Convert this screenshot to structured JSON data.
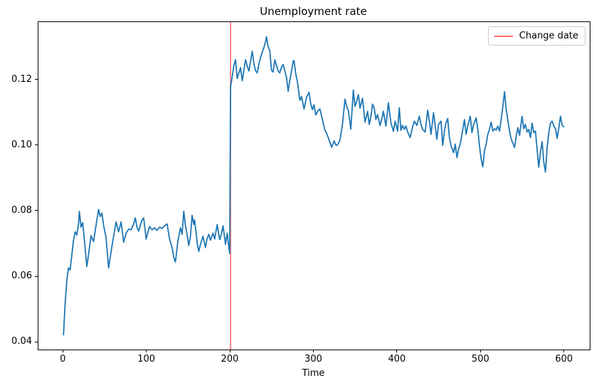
{
  "chart_data": {
    "type": "line",
    "title": "Unemployment rate",
    "xlabel": "Time",
    "ylabel": "",
    "xlim": [
      -30,
      630
    ],
    "ylim": [
      0.0379,
      0.1377
    ],
    "x_ticks": [
      0,
      100,
      200,
      300,
      400,
      500,
      600
    ],
    "y_ticks": [
      0.04,
      0.06,
      0.08,
      0.1,
      0.12
    ],
    "grid": false,
    "legend_position": "upper right",
    "colors": {
      "series": "#1f77b4",
      "vline": "#f96a6a",
      "spine": "#000000",
      "legend_border": "#cccccc"
    },
    "vline": {
      "x": 200,
      "color": "#f96a6a",
      "label": "Change date"
    },
    "series": [
      {
        "name": "unemployment-rate",
        "color": "#1f77b4",
        "points": [
          [
            0,
            0.0424
          ],
          [
            2,
            0.052
          ],
          [
            4,
            0.059
          ],
          [
            6,
            0.0628
          ],
          [
            8,
            0.0622
          ],
          [
            10,
            0.0668
          ],
          [
            12,
            0.0712
          ],
          [
            14,
            0.0738
          ],
          [
            16,
            0.0728
          ],
          [
            18,
            0.0762
          ],
          [
            19,
            0.08
          ],
          [
            21,
            0.0752
          ],
          [
            23,
            0.0766
          ],
          [
            25,
            0.0714
          ],
          [
            28,
            0.0632
          ],
          [
            30,
            0.0668
          ],
          [
            33,
            0.0726
          ],
          [
            36,
            0.0708
          ],
          [
            39,
            0.0758
          ],
          [
            42,
            0.0806
          ],
          [
            44,
            0.0784
          ],
          [
            46,
            0.0795
          ],
          [
            48,
            0.0758
          ],
          [
            51,
            0.072
          ],
          [
            54,
            0.0628
          ],
          [
            57,
            0.0678
          ],
          [
            60,
            0.0724
          ],
          [
            63,
            0.0768
          ],
          [
            66,
            0.0738
          ],
          [
            69,
            0.0768
          ],
          [
            72,
            0.0706
          ],
          [
            75,
            0.0734
          ],
          [
            78,
            0.0746
          ],
          [
            81,
            0.0744
          ],
          [
            84,
            0.0762
          ],
          [
            86,
            0.078
          ],
          [
            88,
            0.0752
          ],
          [
            90,
            0.074
          ],
          [
            92,
            0.0758
          ],
          [
            94,
            0.0774
          ],
          [
            96,
            0.078
          ],
          [
            99,
            0.0716
          ],
          [
            101,
            0.0736
          ],
          [
            103,
            0.0754
          ],
          [
            106,
            0.0744
          ],
          [
            109,
            0.075
          ],
          [
            112,
            0.0742
          ],
          [
            115,
            0.0752
          ],
          [
            118,
            0.0748
          ],
          [
            121,
            0.0756
          ],
          [
            124,
            0.0762
          ],
          [
            127,
            0.0716
          ],
          [
            130,
            0.069
          ],
          [
            132,
            0.066
          ],
          [
            134,
            0.0646
          ],
          [
            137,
            0.071
          ],
          [
            140,
            0.075
          ],
          [
            142,
            0.073
          ],
          [
            144,
            0.08
          ],
          [
            146,
            0.0756
          ],
          [
            148,
            0.073
          ],
          [
            150,
            0.0696
          ],
          [
            152,
            0.0724
          ],
          [
            154,
            0.0788
          ],
          [
            156,
            0.076
          ],
          [
            157,
            0.0774
          ],
          [
            159,
            0.073
          ],
          [
            160,
            0.0704
          ],
          [
            162,
            0.0678
          ],
          [
            164,
            0.07
          ],
          [
            167,
            0.0724
          ],
          [
            170,
            0.069
          ],
          [
            172,
            0.0718
          ],
          [
            174,
            0.073
          ],
          [
            176,
            0.0712
          ],
          [
            179,
            0.0734
          ],
          [
            181,
            0.0716
          ],
          [
            184,
            0.076
          ],
          [
            187,
            0.0714
          ],
          [
            189,
            0.073
          ],
          [
            191,
            0.0756
          ],
          [
            194,
            0.07
          ],
          [
            196,
            0.0734
          ],
          [
            198,
            0.069
          ],
          [
            199,
            0.0672
          ],
          [
            200,
            0.118
          ],
          [
            202,
            0.121
          ],
          [
            204,
            0.1245
          ],
          [
            206,
            0.1262
          ],
          [
            208,
            0.1205
          ],
          [
            210,
            0.1222
          ],
          [
            212,
            0.1238
          ],
          [
            214,
            0.1198
          ],
          [
            216,
            0.123
          ],
          [
            218,
            0.1262
          ],
          [
            220,
            0.1242
          ],
          [
            222,
            0.1228
          ],
          [
            224,
            0.1258
          ],
          [
            226,
            0.1288
          ],
          [
            228,
            0.125
          ],
          [
            230,
            0.1228
          ],
          [
            232,
            0.1222
          ],
          [
            234,
            0.125
          ],
          [
            236,
            0.127
          ],
          [
            238,
            0.1285
          ],
          [
            240,
            0.13
          ],
          [
            242,
            0.1318
          ],
          [
            243,
            0.1332
          ],
          [
            245,
            0.1302
          ],
          [
            247,
            0.129
          ],
          [
            249,
            0.123
          ],
          [
            251,
            0.1225
          ],
          [
            253,
            0.1262
          ],
          [
            255,
            0.1245
          ],
          [
            257,
            0.1228
          ],
          [
            259,
            0.1222
          ],
          [
            261,
            0.124
          ],
          [
            263,
            0.1248
          ],
          [
            265,
            0.1228
          ],
          [
            267,
            0.1208
          ],
          [
            269,
            0.1166
          ],
          [
            271,
            0.12
          ],
          [
            273,
            0.1228
          ],
          [
            275,
            0.1258
          ],
          [
            276,
            0.126
          ],
          [
            278,
            0.122
          ],
          [
            280,
            0.1196
          ],
          [
            283,
            0.1138
          ],
          [
            285,
            0.115
          ],
          [
            288,
            0.1112
          ],
          [
            291,
            0.1148
          ],
          [
            294,
            0.1163
          ],
          [
            296,
            0.1128
          ],
          [
            298,
            0.111
          ],
          [
            300,
            0.1125
          ],
          [
            302,
            0.1094
          ],
          [
            305,
            0.1108
          ],
          [
            307,
            0.1112
          ],
          [
            310,
            0.108
          ],
          [
            313,
            0.1047
          ],
          [
            315,
            0.1038
          ],
          [
            317,
            0.1025
          ],
          [
            319,
            0.101
          ],
          [
            321,
            0.0996
          ],
          [
            323,
            0.1008
          ],
          [
            324,
            0.1015
          ],
          [
            326,
            0.1002
          ],
          [
            327,
            0.1001
          ],
          [
            329,
            0.1006
          ],
          [
            331,
            0.1018
          ],
          [
            334,
            0.1065
          ],
          [
            337,
            0.1142
          ],
          [
            339,
            0.112
          ],
          [
            341,
            0.1108
          ],
          [
            344,
            0.1051
          ],
          [
            347,
            0.117
          ],
          [
            349,
            0.112
          ],
          [
            351,
            0.1135
          ],
          [
            353,
            0.1156
          ],
          [
            355,
            0.1115
          ],
          [
            358,
            0.1145
          ],
          [
            361,
            0.1072
          ],
          [
            364,
            0.1105
          ],
          [
            366,
            0.1065
          ],
          [
            368,
            0.1088
          ],
          [
            370,
            0.1127
          ],
          [
            372,
            0.1115
          ],
          [
            374,
            0.108
          ],
          [
            376,
            0.1095
          ],
          [
            379,
            0.1062
          ],
          [
            381,
            0.108
          ],
          [
            383,
            0.1105
          ],
          [
            386,
            0.106
          ],
          [
            389,
            0.1131
          ],
          [
            392,
            0.107
          ],
          [
            395,
            0.1044
          ],
          [
            397,
            0.1075
          ],
          [
            400,
            0.1045
          ],
          [
            402,
            0.1116
          ],
          [
            404,
            0.1047
          ],
          [
            406,
            0.1062
          ],
          [
            408,
            0.105
          ],
          [
            410,
            0.106
          ],
          [
            412,
            0.1042
          ],
          [
            415,
            0.1025
          ],
          [
            418,
            0.1058
          ],
          [
            420,
            0.1075
          ],
          [
            423,
            0.1062
          ],
          [
            426,
            0.109
          ],
          [
            428,
            0.1065
          ],
          [
            430,
            0.105
          ],
          [
            433,
            0.1042
          ],
          [
            436,
            0.1109
          ],
          [
            438,
            0.1075
          ],
          [
            440,
            0.1035
          ],
          [
            443,
            0.1101
          ],
          [
            445,
            0.106
          ],
          [
            447,
            0.102
          ],
          [
            449,
            0.1065
          ],
          [
            452,
            0.1075
          ],
          [
            454,
            0.1001
          ],
          [
            456,
            0.1045
          ],
          [
            458,
            0.107
          ],
          [
            460,
            0.1083
          ],
          [
            462,
            0.1025
          ],
          [
            464,
            0.1
          ],
          [
            467,
            0.0979
          ],
          [
            469,
            0.1005
          ],
          [
            471,
            0.0964
          ],
          [
            473,
            0.099
          ],
          [
            475,
            0.1005
          ],
          [
            478,
            0.105
          ],
          [
            480,
            0.108
          ],
          [
            482,
            0.1035
          ],
          [
            484,
            0.106
          ],
          [
            487,
            0.109
          ],
          [
            489,
            0.104
          ],
          [
            491,
            0.1065
          ],
          [
            494,
            0.1085
          ],
          [
            496,
            0.105
          ],
          [
            498,
            0.1
          ],
          [
            500,
            0.096
          ],
          [
            502,
            0.0936
          ],
          [
            504,
            0.0985
          ],
          [
            506,
            0.1005
          ],
          [
            508,
            0.1035
          ],
          [
            510,
            0.105
          ],
          [
            512,
            0.1072
          ],
          [
            514,
            0.1045
          ],
          [
            516,
            0.1052
          ],
          [
            518,
            0.1048
          ],
          [
            520,
            0.106
          ],
          [
            522,
            0.1045
          ],
          [
            524,
            0.108
          ],
          [
            526,
            0.112
          ],
          [
            528,
            0.1165
          ],
          [
            530,
            0.111
          ],
          [
            532,
            0.1077
          ],
          [
            534,
            0.1045
          ],
          [
            536,
            0.102
          ],
          [
            538,
            0.1008
          ],
          [
            540,
            0.0995
          ],
          [
            542,
            0.103
          ],
          [
            544,
            0.1055
          ],
          [
            546,
            0.1032
          ],
          [
            549,
            0.109
          ],
          [
            551,
            0.1052
          ],
          [
            553,
            0.1065
          ],
          [
            555,
            0.1042
          ],
          [
            557,
            0.105
          ],
          [
            559,
            0.1025
          ],
          [
            561,
            0.1069
          ],
          [
            563,
            0.104
          ],
          [
            565,
            0.1045
          ],
          [
            567,
            0.099
          ],
          [
            569,
            0.0935
          ],
          [
            571,
            0.0982
          ],
          [
            573,
            0.1012
          ],
          [
            575,
            0.095
          ],
          [
            577,
            0.092
          ],
          [
            579,
            0.0995
          ],
          [
            581,
            0.104
          ],
          [
            583,
            0.1069
          ],
          [
            585,
            0.1075
          ],
          [
            587,
            0.106
          ],
          [
            589,
            0.1052
          ],
          [
            591,
            0.1023
          ],
          [
            593,
            0.1055
          ],
          [
            595,
            0.109
          ],
          [
            597,
            0.1062
          ],
          [
            599,
            0.1058
          ]
        ]
      }
    ]
  }
}
